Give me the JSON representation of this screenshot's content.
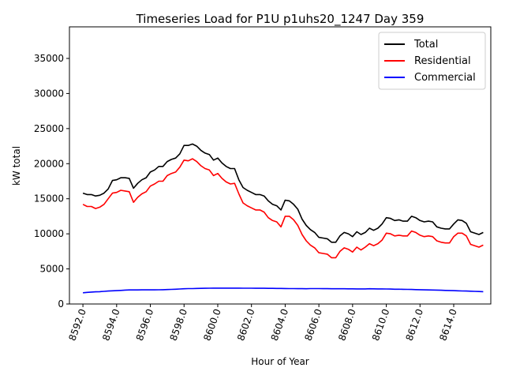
{
  "chart_data": {
    "type": "line",
    "title": "Timeseries Load for P1U p1uhs20_1247  Day 359",
    "xlabel": "Hour of Year",
    "ylabel": "kW total",
    "xlim": [
      8591.2,
      8616.2
    ],
    "ylim": [
      0,
      39500
    ],
    "grid": false,
    "legend_position": "top-right",
    "x_ticks": [
      8592,
      8594,
      8596,
      8598,
      8600,
      8602,
      8604,
      8606,
      8608,
      8610,
      8612,
      8614
    ],
    "x_tick_labels": [
      "8592.0",
      "8594.0",
      "8596.0",
      "8598.0",
      "8600.0",
      "8602.0",
      "8604.0",
      "8606.0",
      "8608.0",
      "8610.0",
      "8612.0",
      "8614.0"
    ],
    "y_ticks": [
      0,
      5000,
      10000,
      15000,
      20000,
      25000,
      30000,
      35000
    ],
    "y_tick_labels": [
      "0",
      "5000",
      "10000",
      "15000",
      "20000",
      "25000",
      "30000",
      "35000"
    ],
    "x_start": 8592.0,
    "x_step": 0.25,
    "series": [
      {
        "name": "Total",
        "color": "#000000",
        "values": [
          15800,
          15600,
          15600,
          15400,
          15500,
          15800,
          16400,
          17600,
          17700,
          18000,
          18000,
          17900,
          16500,
          17200,
          17700,
          18000,
          18800,
          19100,
          19600,
          19600,
          20300,
          20600,
          20800,
          21400,
          22600,
          22600,
          22800,
          22500,
          21900,
          21500,
          21300,
          20500,
          20800,
          20100,
          19600,
          19300,
          19300,
          17700,
          16600,
          16200,
          15900,
          15600,
          15600,
          15400,
          14700,
          14200,
          14000,
          13400,
          14800,
          14700,
          14200,
          13500,
          12100,
          11200,
          10600,
          10200,
          9500,
          9400,
          9300,
          8800,
          8800,
          9700,
          10200,
          10000,
          9600,
          10300,
          9900,
          10200,
          10800,
          10500,
          10800,
          11400,
          12300,
          12200,
          11900,
          12000,
          11800,
          11800,
          12500,
          12300,
          11900,
          11700,
          11800,
          11700,
          11000,
          10800,
          10700,
          10700,
          11400,
          12000,
          11900,
          11500,
          10300,
          10100,
          9900,
          10200
        ]
      },
      {
        "name": "Residential",
        "color": "#ff0000",
        "values": [
          14200,
          13900,
          13900,
          13600,
          13800,
          14200,
          15000,
          15800,
          15900,
          16200,
          16100,
          16000,
          14500,
          15200,
          15700,
          16000,
          16800,
          17100,
          17500,
          17500,
          18300,
          18600,
          18800,
          19500,
          20500,
          20400,
          20700,
          20300,
          19700,
          19300,
          19100,
          18300,
          18600,
          17900,
          17400,
          17100,
          17200,
          15700,
          14400,
          14000,
          13700,
          13400,
          13400,
          13100,
          12300,
          11900,
          11700,
          11000,
          12500,
          12500,
          12000,
          11200,
          9900,
          9000,
          8400,
          8000,
          7300,
          7200,
          7100,
          6600,
          6600,
          7500,
          8000,
          7800,
          7400,
          8100,
          7700,
          8100,
          8600,
          8300,
          8600,
          9100,
          10100,
          10000,
          9700,
          9800,
          9700,
          9700,
          10400,
          10200,
          9800,
          9600,
          9700,
          9600,
          9000,
          8800,
          8700,
          8700,
          9600,
          10100,
          10100,
          9700,
          8500,
          8300,
          8100,
          8400
        ]
      },
      {
        "name": "Commercial",
        "color": "#0000ff",
        "values": [
          1600,
          1650,
          1700,
          1730,
          1760,
          1800,
          1840,
          1880,
          1900,
          1940,
          1980,
          2000,
          2000,
          2000,
          2010,
          2010,
          2020,
          2020,
          2030,
          2040,
          2060,
          2080,
          2100,
          2140,
          2170,
          2200,
          2200,
          2220,
          2230,
          2240,
          2250,
          2260,
          2260,
          2260,
          2260,
          2260,
          2260,
          2260,
          2250,
          2250,
          2250,
          2240,
          2240,
          2240,
          2230,
          2230,
          2220,
          2220,
          2210,
          2200,
          2200,
          2180,
          2180,
          2170,
          2190,
          2190,
          2190,
          2180,
          2180,
          2170,
          2170,
          2170,
          2170,
          2160,
          2160,
          2150,
          2150,
          2150,
          2170,
          2160,
          2150,
          2150,
          2140,
          2130,
          2110,
          2100,
          2090,
          2080,
          2070,
          2050,
          2040,
          2020,
          2000,
          1990,
          1980,
          1960,
          1940,
          1920,
          1900,
          1880,
          1860,
          1840,
          1820,
          1800,
          1780,
          1760
        ]
      }
    ]
  }
}
